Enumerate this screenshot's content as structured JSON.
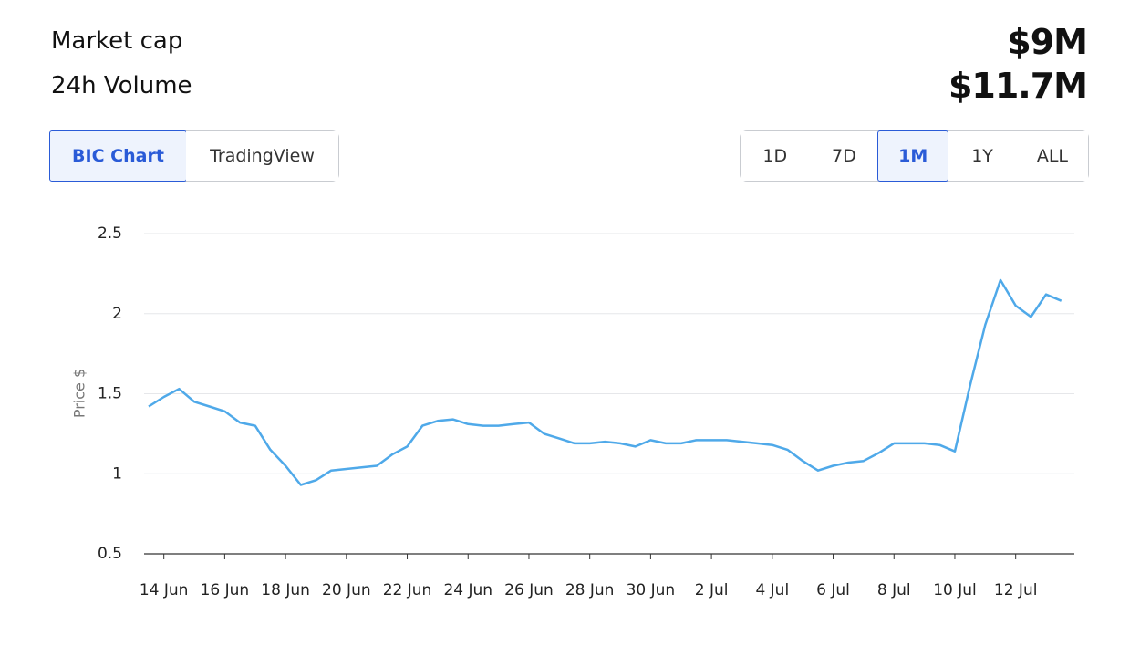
{
  "header": {
    "rows": [
      {
        "label": "Market cap",
        "value": "$9M"
      },
      {
        "label": "24h Volume",
        "value": "$11.7M"
      }
    ]
  },
  "source_tabs": {
    "items": [
      "BIC Chart",
      "TradingView"
    ],
    "active": 0
  },
  "range_tabs": {
    "items": [
      "1D",
      "7D",
      "1M",
      "1Y",
      "ALL"
    ],
    "active": 2
  },
  "chart_data": {
    "type": "line",
    "y_label": "Price $",
    "color": "#4fa9e9",
    "categories": [
      null,
      "14 Jun",
      null,
      null,
      null,
      "16 Jun",
      null,
      null,
      null,
      "18 Jun",
      null,
      null,
      null,
      "20 Jun",
      null,
      null,
      null,
      "22 Jun",
      null,
      null,
      null,
      "24 Jun",
      null,
      null,
      null,
      "26 Jun",
      null,
      null,
      null,
      "28 Jun",
      null,
      null,
      null,
      "30 Jun",
      null,
      null,
      null,
      "2 Jul",
      null,
      null,
      null,
      "4 Jul",
      null,
      null,
      null,
      "6 Jul",
      null,
      null,
      null,
      "8 Jul",
      null,
      null,
      null,
      "10 Jul",
      null,
      null,
      null,
      "12 Jul",
      null,
      null,
      null
    ],
    "values": [
      1.42,
      1.48,
      1.53,
      1.45,
      1.42,
      1.39,
      1.32,
      1.3,
      1.15,
      1.05,
      0.93,
      0.96,
      1.02,
      1.03,
      1.04,
      1.05,
      1.12,
      1.17,
      1.3,
      1.33,
      1.34,
      1.31,
      1.3,
      1.3,
      1.31,
      1.32,
      1.25,
      1.22,
      1.19,
      1.19,
      1.2,
      1.19,
      1.17,
      1.21,
      1.19,
      1.19,
      1.21,
      1.21,
      1.21,
      1.2,
      1.19,
      1.18,
      1.15,
      1.08,
      1.02,
      1.05,
      1.07,
      1.08,
      1.13,
      1.19,
      1.19,
      1.19,
      1.18,
      1.14,
      1.55,
      1.93,
      2.21,
      2.05,
      1.98,
      2.12,
      2.08
    ],
    "ylim": [
      0.5,
      2.5
    ],
    "yticks": [
      0.5,
      1,
      1.5,
      2,
      2.5
    ],
    "grid": true
  }
}
